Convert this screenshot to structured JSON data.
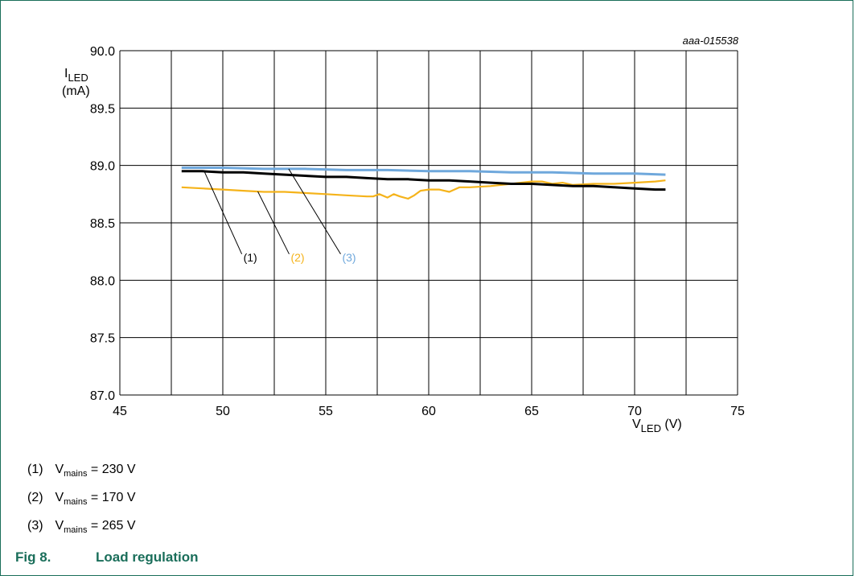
{
  "figure_id": "aaa-015538",
  "caption": {
    "label": "Fig 8.",
    "title": "Load regulation"
  },
  "legend": [
    {
      "num": "(1)",
      "var": "V",
      "sub": "mains",
      "text": " = 230 V"
    },
    {
      "num": "(2)",
      "var": "V",
      "sub": "mains",
      "text": " = 170 V"
    },
    {
      "num": "(3)",
      "var": "V",
      "sub": "mains",
      "text": " = 265 V"
    }
  ],
  "colors": {
    "frame": "#1a6e5a",
    "series1": "#000000",
    "series2": "#f5b31a",
    "series3": "#6fa8dc"
  },
  "chart_data": {
    "type": "line",
    "xlabel": "V",
    "xlabel_sub": "LED",
    "xlabel_unit": " (V)",
    "ylabel": "I",
    "ylabel_sub": "LED",
    "ylabel_unit": "(mA)",
    "xlim": [
      45,
      75
    ],
    "ylim": [
      87.0,
      90.0
    ],
    "xticks": [
      "45",
      "50",
      "55",
      "60",
      "65",
      "70",
      "75"
    ],
    "yticks": [
      "87.0",
      "87.5",
      "88.0",
      "88.5",
      "89.0",
      "89.5",
      "90.0"
    ],
    "grid": true,
    "series": [
      {
        "name": "(1)",
        "x": [
          48,
          49,
          50,
          51,
          52,
          53,
          54,
          55,
          56,
          57,
          58,
          59,
          60,
          61,
          62,
          63,
          64,
          65,
          66,
          67,
          68,
          69,
          70,
          71,
          71.5
        ],
        "y": [
          88.95,
          88.95,
          88.94,
          88.94,
          88.93,
          88.92,
          88.91,
          88.9,
          88.9,
          88.89,
          88.88,
          88.88,
          88.87,
          88.87,
          88.86,
          88.85,
          88.84,
          88.84,
          88.83,
          88.82,
          88.82,
          88.81,
          88.8,
          88.79,
          88.79
        ]
      },
      {
        "name": "(2)",
        "x": [
          48,
          49,
          50,
          51,
          52,
          53,
          54,
          55,
          56,
          57,
          57.3,
          57.6,
          58,
          58.3,
          58.6,
          59,
          59.3,
          59.6,
          60,
          60.5,
          61,
          61.5,
          62,
          63,
          64,
          65,
          65.5,
          66,
          66.5,
          67,
          68,
          69,
          70,
          71,
          71.5
        ],
        "y": [
          88.81,
          88.8,
          88.79,
          88.78,
          88.77,
          88.77,
          88.76,
          88.75,
          88.74,
          88.73,
          88.73,
          88.75,
          88.72,
          88.75,
          88.73,
          88.71,
          88.74,
          88.78,
          88.79,
          88.79,
          88.77,
          88.81,
          88.81,
          88.82,
          88.84,
          88.86,
          88.86,
          88.84,
          88.85,
          88.83,
          88.84,
          88.84,
          88.85,
          88.86,
          88.87
        ]
      },
      {
        "name": "(3)",
        "x": [
          48,
          50,
          52,
          54,
          56,
          58,
          60,
          62,
          64,
          66,
          68,
          70,
          71.5
        ],
        "y": [
          88.98,
          88.98,
          88.97,
          88.97,
          88.96,
          88.96,
          88.95,
          88.95,
          88.94,
          88.94,
          88.93,
          88.93,
          88.92
        ]
      }
    ],
    "annotations": [
      {
        "text": "(1)",
        "series": 0,
        "from_x": 49.1,
        "label_x": 51.0,
        "label_y": 88.2
      },
      {
        "text": "(2)",
        "series": 1,
        "from_x": 51.7,
        "label_x": 53.3,
        "label_y": 88.2
      },
      {
        "text": "(3)",
        "series": 2,
        "from_x": 53.2,
        "label_x": 55.8,
        "label_y": 88.2
      }
    ]
  }
}
